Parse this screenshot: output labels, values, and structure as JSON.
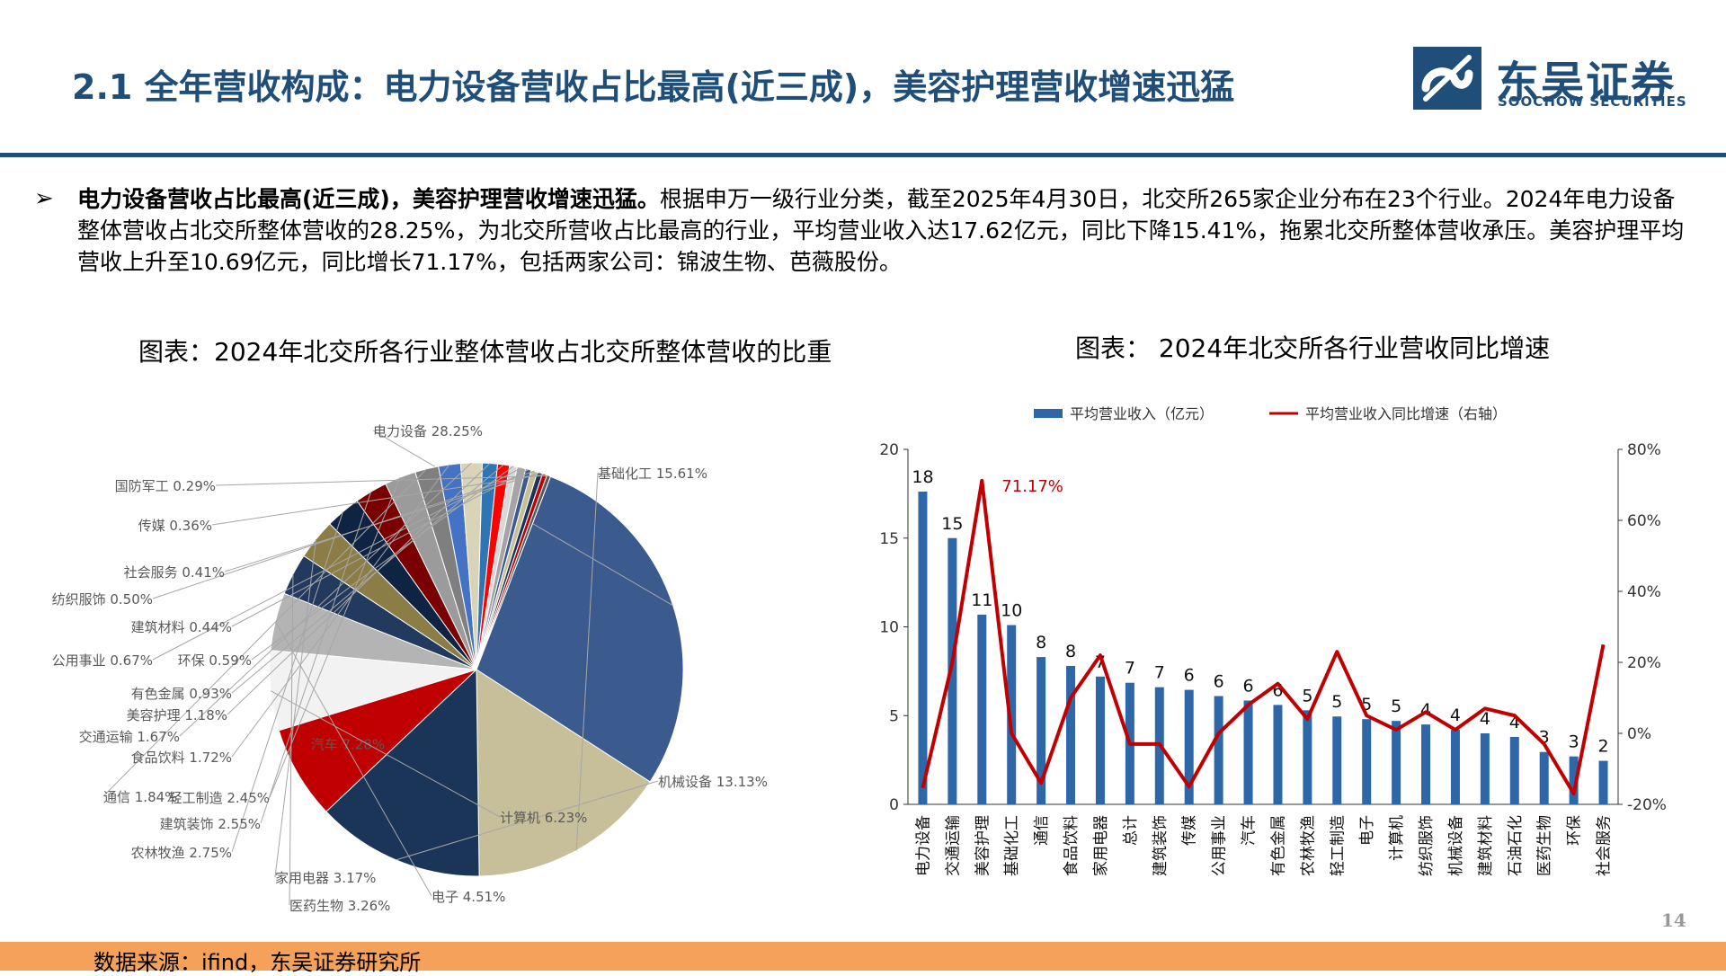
{
  "header": {
    "title": "2.1 全年营收构成：电力设备营收占比最高(近三成)，美容护理营收增速迅猛",
    "logo_cn": "东吴证券",
    "logo_en": "SOOCHOW SECURITIES",
    "brand_color": "#1f4e79"
  },
  "body": {
    "bullet": "➢",
    "bold_lead": "电力设备营收占比最高(近三成)，美容护理营收增速迅猛。",
    "text": "根据申万一级行业分类，截至2025年4月30日，北交所265家企业分布在23个行业。2024年电力设备整体营收占北交所整体营收的28.25%，为北交所营收占比最高的行业，平均营业收入达17.62亿元，同比下降15.41%，拖累北交所整体营收承压。美容护理平均营收上升至10.69亿元，同比增长71.17%，包括两家公司：锦波生物、芭薇股份。"
  },
  "chart_titles": {
    "left": "图表：2024年北交所各行业整体营收占北交所整体营收的比重",
    "right": "图表： 2024年北交所各行业营收同比增速"
  },
  "footer": {
    "source": "数据来源：ifind，东吴证券研究所",
    "page": "14",
    "bar_color": "#f5a15a"
  },
  "chart_data": [
    {
      "type": "pie",
      "slices": [
        {
          "label": "电力设备",
          "value": 28.25,
          "text": "28.25%",
          "color": "#3b5b8f"
        },
        {
          "label": "基础化工",
          "value": 15.61,
          "text": "15.61%",
          "color": "#c7bf9a"
        },
        {
          "label": "机械设备",
          "value": 13.13,
          "text": "13.13%",
          "color": "#1a3558"
        },
        {
          "label": "汽车",
          "value": 7.28,
          "text": "7.28%",
          "color": "#c00000"
        },
        {
          "label": "计算机",
          "value": 6.23,
          "text": "6.23%",
          "color": "#f2f2f2"
        },
        {
          "label": "电子",
          "value": 4.51,
          "text": "4.51%",
          "color": "#b4b4b4"
        },
        {
          "label": "医药生物",
          "value": 3.26,
          "text": "3.26%",
          "color": "#223a5e"
        },
        {
          "label": "家用电器",
          "value": 3.17,
          "text": "3.17%",
          "color": "#8c7d47"
        },
        {
          "label": "农林牧渔",
          "value": 2.75,
          "text": "2.75%",
          "color": "#0f2342"
        },
        {
          "label": "建筑装饰",
          "value": 2.55,
          "text": "2.55%",
          "color": "#7a0000"
        },
        {
          "label": "轻工制造",
          "value": 2.45,
          "text": "2.45%",
          "color": "#9b9b9b"
        },
        {
          "label": "通信",
          "value": 1.84,
          "text": "1.84%",
          "color": "#7f7f7f"
        },
        {
          "label": "食品饮料",
          "value": 1.72,
          "text": "1.72%",
          "color": "#4472c4"
        },
        {
          "label": "交通运输",
          "value": 1.67,
          "text": "1.67%",
          "color": "#d9d3b8"
        },
        {
          "label": "美容护理",
          "value": 1.18,
          "text": "1.18%",
          "color": "#2e75b6"
        },
        {
          "label": "有色金属",
          "value": 0.93,
          "text": "0.93%",
          "color": "#ff0000"
        },
        {
          "label": "环保",
          "value": 0.59,
          "text": "0.59%",
          "color": "#d9d9d9"
        },
        {
          "label": "公用事业",
          "value": 0.67,
          "text": "0.67%",
          "color": "#a5a5a5"
        },
        {
          "label": "建筑材料",
          "value": 0.44,
          "text": "0.44%",
          "color": "#3b5b8f"
        },
        {
          "label": "纺织服饰",
          "value": 0.5,
          "text": "0.50%",
          "color": "#c7bf9a"
        },
        {
          "label": "社会服务",
          "value": 0.41,
          "text": "0.41%",
          "color": "#1a3558"
        },
        {
          "label": "传媒",
          "value": 0.36,
          "text": "0.36%",
          "color": "#c00000"
        },
        {
          "label": "国防军工",
          "value": 0.29,
          "text": "0.29%",
          "color": "#595959"
        }
      ]
    },
    {
      "type": "bar",
      "categories": [
        "电力设备",
        "交通运输",
        "美容护理",
        "基础化工",
        "通信",
        "食品饮料",
        "家用电器",
        "总计",
        "建筑装饰",
        "传媒",
        "公用事业",
        "汽车",
        "有色金属",
        "农林牧渔",
        "轻工制造",
        "电子",
        "计算机",
        "纺织服饰",
        "机械设备",
        "建筑材料",
        "石油石化",
        "医药生物",
        "环保",
        "社会服务"
      ],
      "series": [
        {
          "name": "平均营业收入（亿元）",
          "type": "bar",
          "axis": "left",
          "color": "#2e67a8",
          "values": [
            17.62,
            15.0,
            10.69,
            10.1,
            8.3,
            7.8,
            7.2,
            6.85,
            6.6,
            6.45,
            6.1,
            5.85,
            5.6,
            5.3,
            4.95,
            4.8,
            4.7,
            4.5,
            4.2,
            4.0,
            3.8,
            2.95,
            2.7,
            2.45
          ],
          "labels": [
            "18",
            "15",
            "11",
            "10",
            "8",
            "8",
            "7",
            "7",
            "7",
            "6",
            "6",
            "6",
            "6",
            "5",
            "5",
            "5",
            "5",
            "4",
            "4",
            "4",
            "4",
            "3",
            "3",
            "2"
          ]
        },
        {
          "name": "平均营业收入同比增速（右轴）",
          "type": "line",
          "axis": "right",
          "color": "#c00000",
          "values": [
            -15.41,
            20,
            71.17,
            0,
            -14,
            10,
            22,
            -3,
            -3,
            -15,
            0,
            8,
            14,
            4,
            23,
            5,
            1,
            6,
            1,
            7,
            5,
            -3,
            -17,
            25
          ]
        }
      ],
      "annotation": "71.17%",
      "left_axis": {
        "min": 0,
        "max": 20,
        "ticks": [
          "0",
          "5",
          "10",
          "15",
          "20"
        ]
      },
      "right_axis": {
        "min": -20,
        "max": 80,
        "ticks": [
          "-20%",
          "0%",
          "20%",
          "40%",
          "60%",
          "80%"
        ]
      }
    }
  ]
}
